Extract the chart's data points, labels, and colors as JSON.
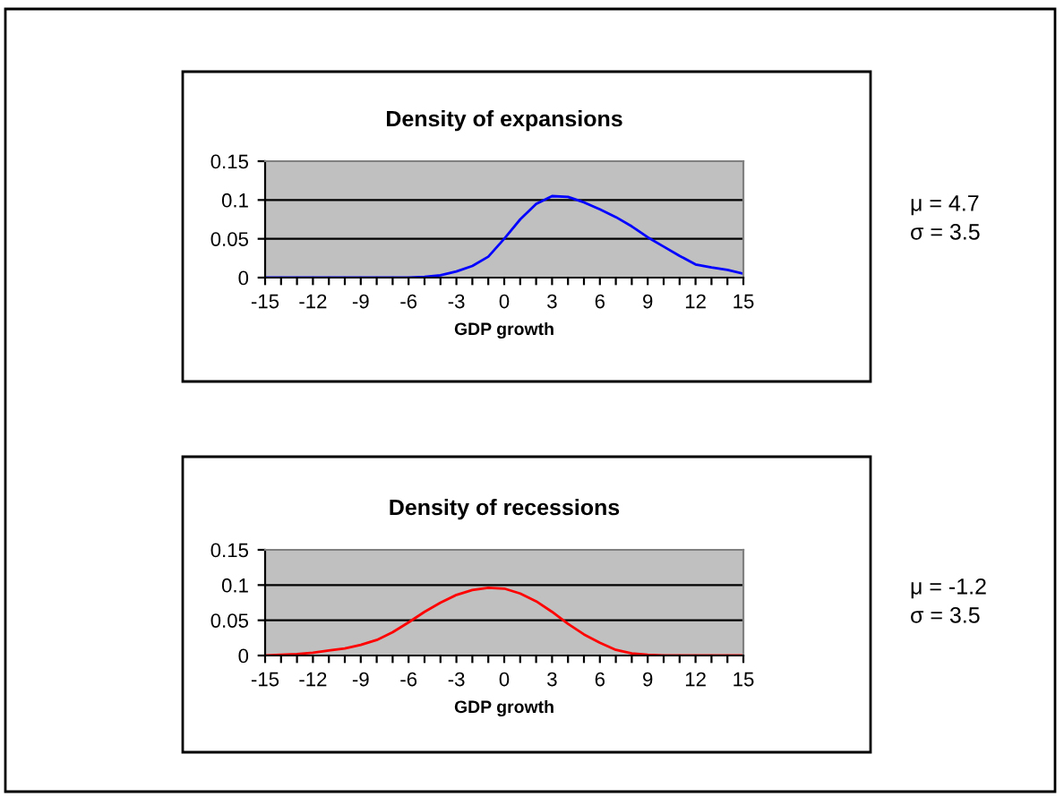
{
  "chart_data": [
    {
      "type": "line",
      "title": "Density of expansions",
      "xlabel": "GDP growth",
      "annotations": [
        "μ = 4.7",
        "σ = 3.5"
      ],
      "x": [
        -15,
        -14,
        -13,
        -12,
        -11,
        -10,
        -9,
        -8,
        -7,
        -6,
        -5,
        -4,
        -3,
        -2,
        -1,
        0,
        1,
        2,
        3,
        4,
        5,
        6,
        7,
        8,
        9,
        10,
        11,
        12,
        13,
        14,
        15
      ],
      "series": [
        {
          "color": "#0000ff",
          "values": [
            0,
            0,
            0,
            0,
            0,
            0,
            0,
            0,
            0,
            0,
            0.001,
            0.003,
            0.008,
            0.015,
            0.027,
            0.05,
            0.075,
            0.095,
            0.105,
            0.104,
            0.097,
            0.088,
            0.078,
            0.066,
            0.052,
            0.04,
            0.028,
            0.017,
            0.013,
            0.01,
            0.005
          ]
        }
      ],
      "xlim": [
        -15,
        15
      ],
      "xticks": [
        -15,
        {
          "value": -14,
          "label": null
        },
        {
          "value": -13,
          "label": null
        },
        -12,
        {
          "value": -11,
          "label": null
        },
        {
          "value": -10,
          "label": null
        },
        -9,
        {
          "value": -8,
          "label": null
        },
        {
          "value": -7,
          "label": null
        },
        -6,
        {
          "value": -5,
          "label": null
        },
        {
          "value": -4,
          "label": null
        },
        -3,
        {
          "value": -2,
          "label": null
        },
        {
          "value": -1,
          "label": null
        },
        0,
        {
          "value": 1,
          "label": null
        },
        {
          "value": 2,
          "label": null
        },
        3,
        {
          "value": 4,
          "label": null
        },
        {
          "value": 5,
          "label": null
        },
        6,
        {
          "value": 7,
          "label": null
        },
        {
          "value": 8,
          "label": null
        },
        9,
        {
          "value": 10,
          "label": null
        },
        {
          "value": 11,
          "label": null
        },
        12,
        {
          "value": 13,
          "label": null
        },
        {
          "value": 14,
          "label": null
        },
        15
      ],
      "ylim": [
        0,
        0.15
      ],
      "yticks": [
        0,
        0.05,
        0.1,
        0.15
      ],
      "grid": "y",
      "legend": false,
      "marker": "none",
      "line_style": "solid"
    },
    {
      "type": "line",
      "title": "Density of recessions",
      "xlabel": "GDP growth",
      "annotations": [
        "μ = -1.2",
        "σ = 3.5"
      ],
      "x": [
        -15,
        -14,
        -13,
        -12,
        -11,
        -10,
        -9,
        -8,
        -7,
        -6,
        -5,
        -4,
        -3,
        -2,
        -1,
        0,
        1,
        2,
        3,
        4,
        5,
        6,
        7,
        8,
        9,
        10,
        11,
        12,
        13,
        14,
        15
      ],
      "series": [
        {
          "color": "#ff0000",
          "values": [
            0,
            0.001,
            0.002,
            0.004,
            0.007,
            0.01,
            0.015,
            0.022,
            0.033,
            0.047,
            0.062,
            0.075,
            0.086,
            0.093,
            0.096,
            0.095,
            0.088,
            0.077,
            0.062,
            0.045,
            0.03,
            0.018,
            0.008,
            0.003,
            0.001,
            0,
            0,
            0,
            0,
            0,
            0
          ]
        }
      ],
      "xlim": [
        -15,
        15
      ],
      "xticks": [
        -15,
        {
          "value": -14,
          "label": null
        },
        {
          "value": -13,
          "label": null
        },
        -12,
        {
          "value": -11,
          "label": null
        },
        {
          "value": -10,
          "label": null
        },
        -9,
        {
          "value": -8,
          "label": null
        },
        {
          "value": -7,
          "label": null
        },
        -6,
        {
          "value": -5,
          "label": null
        },
        {
          "value": -4,
          "label": null
        },
        -3,
        {
          "value": -2,
          "label": null
        },
        {
          "value": -1,
          "label": null
        },
        0,
        {
          "value": 1,
          "label": null
        },
        {
          "value": 2,
          "label": null
        },
        3,
        {
          "value": 4,
          "label": null
        },
        {
          "value": 5,
          "label": null
        },
        6,
        {
          "value": 7,
          "label": null
        },
        {
          "value": 8,
          "label": null
        },
        9,
        {
          "value": 10,
          "label": null
        },
        {
          "value": 11,
          "label": null
        },
        12,
        {
          "value": 13,
          "label": null
        },
        {
          "value": 14,
          "label": null
        },
        15
      ],
      "ylim": [
        0,
        0.15
      ],
      "yticks": [
        0,
        0.05,
        0.1,
        0.15
      ],
      "grid": "y",
      "legend": false,
      "marker": "none",
      "line_style": "solid"
    }
  ]
}
